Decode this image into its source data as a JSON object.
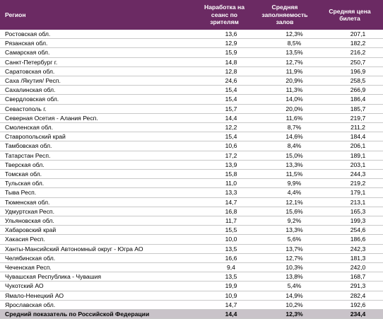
{
  "table": {
    "headers": [
      "Регион",
      "Наработка на сеанс по зрителям",
      "Средняя заполняемость залов",
      "Средняя цена билета"
    ],
    "rows": [
      [
        "Ростовская обл.",
        "13,6",
        "12,3%",
        "207,1"
      ],
      [
        "Рязанская обл.",
        "12,9",
        "8,5%",
        "182,2"
      ],
      [
        "Самарская обл.",
        "15,9",
        "13,5%",
        "216,2"
      ],
      [
        "Санкт-Петербург г.",
        "14,8",
        "12,7%",
        "250,7"
      ],
      [
        "Саратовская обл.",
        "12,8",
        "11,9%",
        "196,9"
      ],
      [
        "Саха /Якутия/ Респ.",
        "24,6",
        "20,9%",
        "258,5"
      ],
      [
        "Сахалинская обл.",
        "15,4",
        "11,3%",
        "266,9"
      ],
      [
        "Свердловская обл.",
        "15,4",
        "14,0%",
        "186,4"
      ],
      [
        "Севастополь г.",
        "15,7",
        "20,0%",
        "185,7"
      ],
      [
        "Северная Осетия - Алания Респ.",
        "14,4",
        "11,6%",
        "219,7"
      ],
      [
        "Смоленская обл.",
        "12,2",
        "8,7%",
        "211,2"
      ],
      [
        "Ставропольский край",
        "15,4",
        "14,6%",
        "184,4"
      ],
      [
        "Тамбовская обл.",
        "10,6",
        "8,4%",
        "206,1"
      ],
      [
        "Татарстан Респ.",
        "17,2",
        "15,0%",
        "189,1"
      ],
      [
        "Тверская обл.",
        "13,9",
        "13,3%",
        "203,1"
      ],
      [
        "Томская обл.",
        "15,8",
        "11,5%",
        "244,3"
      ],
      [
        "Тульская обл.",
        "11,0",
        "9,9%",
        "219,2"
      ],
      [
        "Тыва Респ.",
        "13,3",
        "4,4%",
        "179,1"
      ],
      [
        "Тюменская обл.",
        "14,7",
        "12,1%",
        "213,1"
      ],
      [
        "Удмуртская Респ.",
        "16,8",
        "15,6%",
        "165,3"
      ],
      [
        "Ульяновская обл.",
        "11,7",
        "9,2%",
        "199,3"
      ],
      [
        "Хабаровский край",
        "15,5",
        "13,3%",
        "254,6"
      ],
      [
        "Хакасия Респ.",
        "10,0",
        "5,6%",
        "186,6"
      ],
      [
        "Ханты-Мансийский Автономный округ - Югра АО",
        "13,5",
        "13,7%",
        "242,3"
      ],
      [
        "Челябинская обл.",
        "16,6",
        "12,7%",
        "181,3"
      ],
      [
        "Чеченская Респ.",
        "9,4",
        "10,3%",
        "242,0"
      ],
      [
        "Чувашская Республика - Чувашия",
        "13,5",
        "13,8%",
        "168,7"
      ],
      [
        "Чукотский АО",
        "19,9",
        "5,4%",
        "291,3"
      ],
      [
        "Ямало-Ненецкий АО",
        "10,9",
        "14,9%",
        "282,4"
      ],
      [
        "Ярославская обл.",
        "14,7",
        "10,2%",
        "192,6"
      ]
    ],
    "total": [
      "Средний показатель по Российской Федерации",
      "14,4",
      "12,3%",
      "234,4"
    ]
  },
  "colors": {
    "header_bg": "#6b2a63",
    "header_text": "#ffffff",
    "total_bg": "#c9c3c9"
  }
}
